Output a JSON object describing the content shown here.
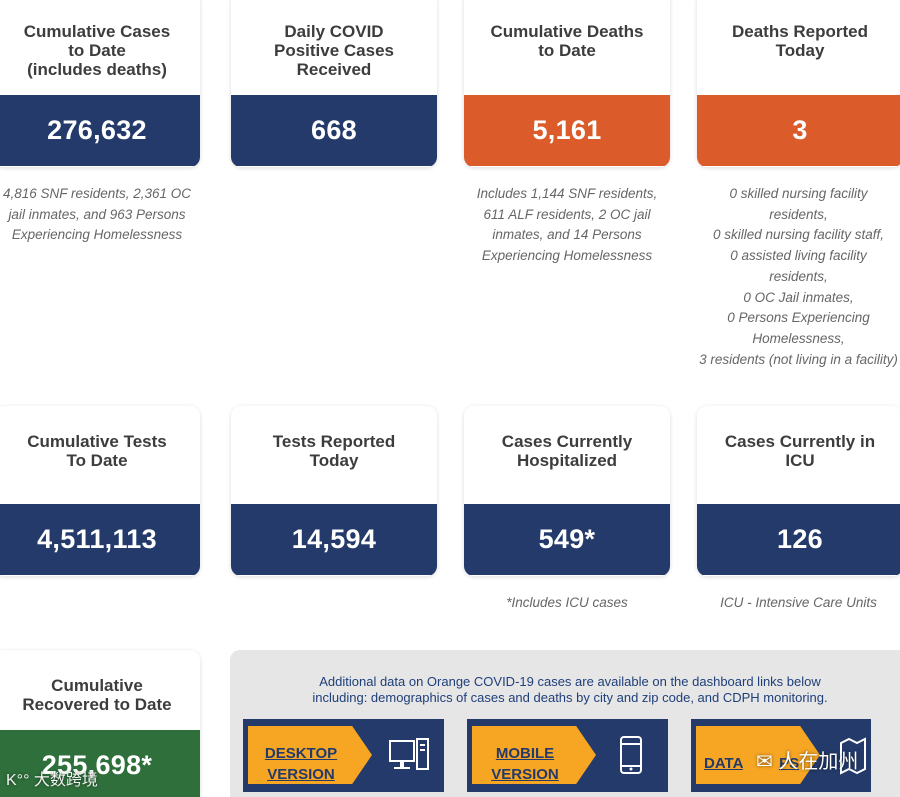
{
  "colors": {
    "navy": "#233a6a",
    "orange": "#db5b2b",
    "green": "#2e6f3b",
    "tag": "#f6a623",
    "panel": "#e6e6e6"
  },
  "cards": {
    "cum_cases": {
      "title": "Cumulative Cases\nto Date\n(includes deaths)",
      "value": "276,632",
      "note": "4,816 SNF residents, 2,361 OC\njail inmates, and 963 Persons\nExperiencing Homelessness"
    },
    "daily_positive": {
      "title": "Daily COVID\nPositive Cases\nReceived",
      "value": "668"
    },
    "cum_deaths": {
      "title": "Cumulative Deaths\nto Date",
      "value": "5,161",
      "note": "Includes 1,144 SNF residents,\n611 ALF residents, 2 OC jail\ninmates, and 14 Persons\nExperiencing Homelessness"
    },
    "deaths_today": {
      "title": "Deaths Reported\nToday",
      "value": "3",
      "note": "0 skilled nursing facility\nresidents,\n0 skilled nursing facility staff,\n0 assisted living facility\nresidents,\n0 OC Jail inmates,\n0 Persons Experiencing\nHomelessness,\n3 residents (not living in a facility)"
    },
    "cum_tests": {
      "title": "Cumulative Tests\nTo Date",
      "value": "4,511,113"
    },
    "tests_today": {
      "title": "Tests Reported\nToday",
      "value": "14,594"
    },
    "hospitalized": {
      "title": "Cases Currently\nHospitalized",
      "value": "549*",
      "note": "*Includes ICU cases"
    },
    "icu": {
      "title": "Cases Currently in\nICU",
      "value": "126",
      "note": "ICU - Intensive Care Units"
    },
    "recovered": {
      "title": "Cumulative\nRecovered to Date",
      "value": "255,698*"
    }
  },
  "dashboard": {
    "text": "Additional data on Orange COVID-19 cases are available on the dashboard links below\nincluding: demographics of cases and deaths by city and zip code, and CDPH monitoring.",
    "links": [
      {
        "label": "DESKTOP\nVERSION",
        "icon": "desktop-computer-icon"
      },
      {
        "label": "MOBILE\nVERSION",
        "icon": "mobile-phone-icon"
      },
      {
        "label": "DATA",
        "label_tail": "PS",
        "icon": "map-icon"
      }
    ]
  },
  "watermarks": {
    "left": "大数跨境",
    "right": "人在加州"
  }
}
